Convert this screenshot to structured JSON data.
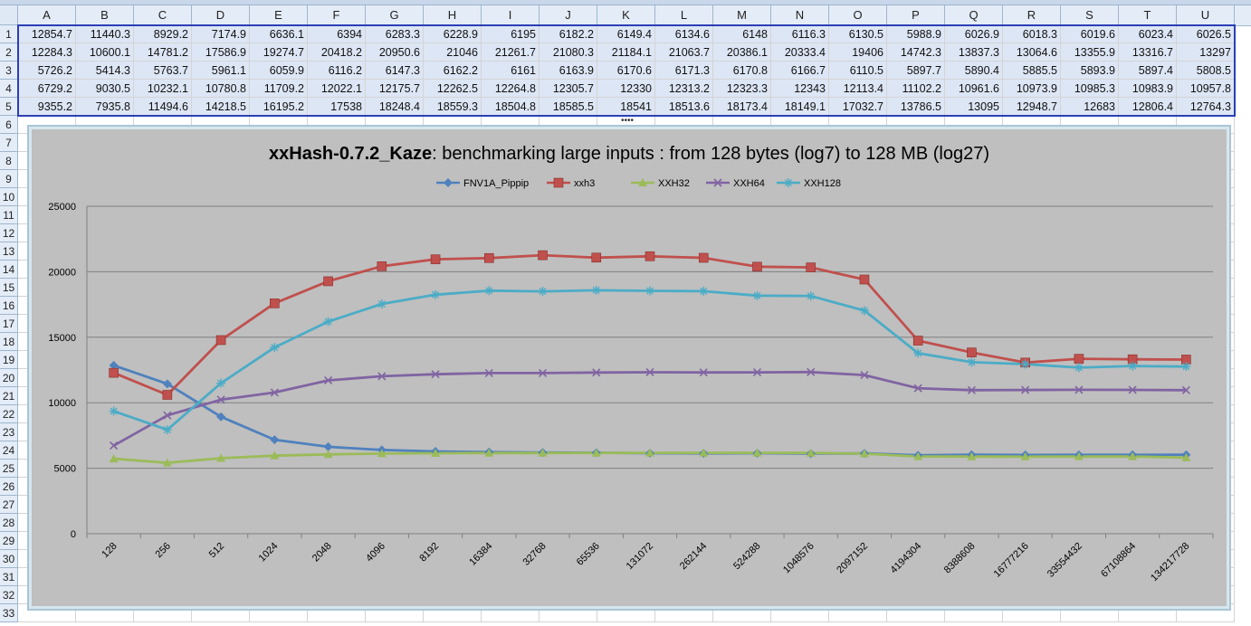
{
  "sheet": {
    "columns": [
      "A",
      "B",
      "C",
      "D",
      "E",
      "F",
      "G",
      "H",
      "I",
      "J",
      "K",
      "L",
      "M",
      "N",
      "O",
      "P",
      "Q",
      "R",
      "S",
      "T",
      "U"
    ],
    "row_numbers": [
      "1",
      "2",
      "3",
      "4",
      "5",
      "6",
      "7",
      "8",
      "9",
      "10",
      "11",
      "12",
      "13",
      "14",
      "15",
      "16",
      "17",
      "18",
      "19",
      "20",
      "21",
      "22",
      "23",
      "24",
      "25",
      "26",
      "27",
      "28",
      "29",
      "30",
      "31",
      "32",
      "33"
    ],
    "rows": [
      [
        "12854.7",
        "11440.3",
        "8929.2",
        "7174.9",
        "6636.1",
        "6394",
        "6283.3",
        "6228.9",
        "6195",
        "6182.2",
        "6149.4",
        "6134.6",
        "6148",
        "6116.3",
        "6130.5",
        "5988.9",
        "6026.9",
        "6018.3",
        "6019.6",
        "6023.4",
        "6026.5"
      ],
      [
        "12284.3",
        "10600.1",
        "14781.2",
        "17586.9",
        "19274.7",
        "20418.2",
        "20950.6",
        "21046",
        "21261.7",
        "21080.3",
        "21184.1",
        "21063.7",
        "20386.1",
        "20333.4",
        "19406",
        "14742.3",
        "13837.3",
        "13064.6",
        "13355.9",
        "13316.7",
        "13297"
      ],
      [
        "5726.2",
        "5414.3",
        "5763.7",
        "5961.1",
        "6059.9",
        "6116.2",
        "6147.3",
        "6162.2",
        "6161",
        "6163.9",
        "6170.6",
        "6171.3",
        "6170.8",
        "6166.7",
        "6110.5",
        "5897.7",
        "5890.4",
        "5885.5",
        "5893.9",
        "5897.4",
        "5808.5"
      ],
      [
        "6729.2",
        "9030.5",
        "10232.1",
        "10780.8",
        "11709.2",
        "12022.1",
        "12175.7",
        "12262.5",
        "12264.8",
        "12305.7",
        "12330",
        "12313.2",
        "12323.3",
        "12343",
        "12113.4",
        "11102.2",
        "10961.6",
        "10973.9",
        "10985.3",
        "10983.9",
        "10957.8"
      ],
      [
        "9355.2",
        "7935.8",
        "11494.6",
        "14218.5",
        "16195.2",
        "17538",
        "18248.4",
        "18559.3",
        "18504.8",
        "18585.5",
        "18541",
        "18513.6",
        "18173.4",
        "18149.1",
        "17032.7",
        "13786.5",
        "13095",
        "12948.7",
        "12683",
        "12806.4",
        "12764.3"
      ]
    ]
  },
  "chart_data": {
    "type": "line",
    "title_bold": "xxHash-0.7.2_Kaze",
    "title_rest": ": benchmarking large inputs : from 128 bytes (log7) to 128 MB (log27)",
    "xlabel": "",
    "ylabel": "",
    "ylim": [
      0,
      25000
    ],
    "yticks": [
      "0",
      "5000",
      "10000",
      "15000",
      "20000",
      "25000"
    ],
    "grid": true,
    "legend_position": "top",
    "categories": [
      "128",
      "256",
      "512",
      "1024",
      "2048",
      "4096",
      "8192",
      "16384",
      "32768",
      "65536",
      "131072",
      "262144",
      "524288",
      "1048576",
      "2097152",
      "4194304",
      "8388608",
      "16777216",
      "33554432",
      "67108864",
      "134217728"
    ],
    "series": [
      {
        "name": "FNV1A_Pippip",
        "color": "#4f81bd",
        "marker": "diamond",
        "values": [
          12854.7,
          11440.3,
          8929.2,
          7174.9,
          6636.1,
          6394,
          6283.3,
          6228.9,
          6195,
          6182.2,
          6149.4,
          6134.6,
          6148,
          6116.3,
          6130.5,
          5988.9,
          6026.9,
          6018.3,
          6019.6,
          6023.4,
          6026.5
        ]
      },
      {
        "name": "xxh3",
        "color": "#c0504d",
        "marker": "square",
        "values": [
          12284.3,
          10600.1,
          14781.2,
          17586.9,
          19274.7,
          20418.2,
          20950.6,
          21046,
          21261.7,
          21080.3,
          21184.1,
          21063.7,
          20386.1,
          20333.4,
          19406,
          14742.3,
          13837.3,
          13064.6,
          13355.9,
          13316.7,
          13297
        ]
      },
      {
        "name": "XXH32",
        "color": "#9bbb59",
        "marker": "triangle",
        "values": [
          5726.2,
          5414.3,
          5763.7,
          5961.1,
          6059.9,
          6116.2,
          6147.3,
          6162.2,
          6161,
          6163.9,
          6170.6,
          6171.3,
          6170.8,
          6166.7,
          6110.5,
          5897.7,
          5890.4,
          5885.5,
          5893.9,
          5897.4,
          5808.5
        ]
      },
      {
        "name": "XXH64",
        "color": "#8064a2",
        "marker": "x",
        "values": [
          6729.2,
          9030.5,
          10232.1,
          10780.8,
          11709.2,
          12022.1,
          12175.7,
          12262.5,
          12264.8,
          12305.7,
          12330,
          12313.2,
          12323.3,
          12343,
          12113.4,
          11102.2,
          10961.6,
          10973.9,
          10985.3,
          10983.9,
          10957.8
        ]
      },
      {
        "name": "XXH128",
        "color": "#4bacc6",
        "marker": "star",
        "values": [
          9355.2,
          7935.8,
          11494.6,
          14218.5,
          16195.2,
          17538,
          18248.4,
          18559.3,
          18504.8,
          18585.5,
          18541,
          18513.6,
          18173.4,
          18149.1,
          17032.7,
          13786.5,
          13095,
          12948.7,
          12683,
          12806.4,
          12764.3
        ]
      }
    ]
  }
}
